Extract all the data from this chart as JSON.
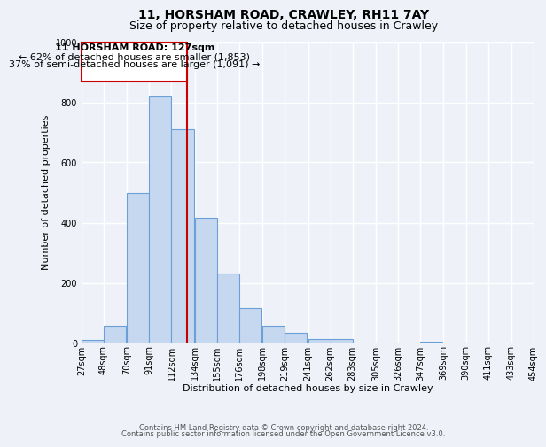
{
  "title": "11, HORSHAM ROAD, CRAWLEY, RH11 7AY",
  "subtitle": "Size of property relative to detached houses in Crawley",
  "xlabel": "Distribution of detached houses by size in Crawley",
  "ylabel": "Number of detached properties",
  "bar_left_edges": [
    27,
    48,
    70,
    91,
    112,
    134,
    155,
    176,
    198,
    219,
    241,
    262,
    283,
    305,
    326,
    347,
    369,
    390,
    411,
    433
  ],
  "bar_heights": [
    10,
    57,
    500,
    820,
    710,
    415,
    230,
    117,
    57,
    35,
    12,
    12,
    0,
    0,
    0,
    3,
    0,
    0,
    0,
    0
  ],
  "bin_width": 21,
  "property_size": 127,
  "vline_color": "#cc0000",
  "bar_fill_color": "#c5d8f0",
  "bar_edge_color": "#6a9fd8",
  "annotation_box_edge_color": "#cc0000",
  "annotation_text_line1": "11 HORSHAM ROAD: 127sqm",
  "annotation_text_line2": "← 62% of detached houses are smaller (1,853)",
  "annotation_text_line3": "37% of semi-detached houses are larger (1,091) →",
  "ylim": [
    0,
    1000
  ],
  "tick_labels": [
    "27sqm",
    "48sqm",
    "70sqm",
    "91sqm",
    "112sqm",
    "134sqm",
    "155sqm",
    "176sqm",
    "198sqm",
    "219sqm",
    "241sqm",
    "262sqm",
    "283sqm",
    "305sqm",
    "326sqm",
    "347sqm",
    "369sqm",
    "390sqm",
    "411sqm",
    "433sqm",
    "454sqm"
  ],
  "footer_line1": "Contains HM Land Registry data © Crown copyright and database right 2024.",
  "footer_line2": "Contains public sector information licensed under the Open Government Licence v3.0.",
  "background_color": "#eef2f8",
  "plot_background_color": "#eef2f8",
  "grid_color": "#ffffff",
  "title_fontsize": 10,
  "subtitle_fontsize": 9,
  "axis_label_fontsize": 8,
  "tick_fontsize": 7,
  "annotation_fontsize": 8,
  "footer_fontsize": 6
}
